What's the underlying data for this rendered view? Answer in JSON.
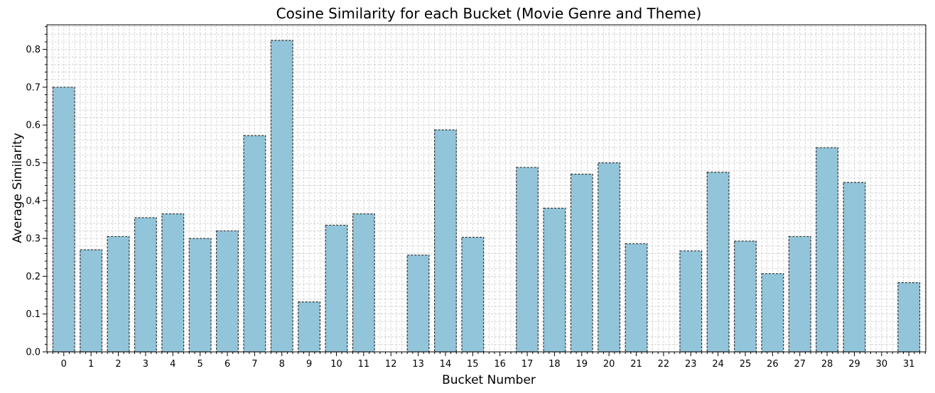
{
  "chart_data": {
    "type": "bar",
    "title": "Cosine Similarity for each Bucket (Movie Genre and Theme)",
    "xlabel": "Bucket Number",
    "ylabel": "Average Similarity",
    "categories": [
      "0",
      "1",
      "2",
      "3",
      "4",
      "5",
      "6",
      "7",
      "8",
      "9",
      "10",
      "11",
      "12",
      "13",
      "14",
      "15",
      "16",
      "17",
      "18",
      "19",
      "20",
      "21",
      "22",
      "23",
      "24",
      "25",
      "26",
      "27",
      "28",
      "29",
      "30",
      "31"
    ],
    "values": [
      0.7,
      0.27,
      0.305,
      0.355,
      0.365,
      0.3,
      0.32,
      0.572,
      0.824,
      0.132,
      0.335,
      0.365,
      0,
      0.256,
      0.587,
      0.303,
      0,
      0.488,
      0.38,
      0.47,
      0.5,
      0.286,
      0,
      0.267,
      0.475,
      0.293,
      0.207,
      0.305,
      0.54,
      0.448,
      0,
      0.183
    ],
    "ylim": [
      0,
      0.865
    ],
    "yticks": [
      "0.0",
      "0.1",
      "0.2",
      "0.3",
      "0.4",
      "0.5",
      "0.6",
      "0.7",
      "0.8"
    ],
    "grid": true,
    "minor_grid": true,
    "bar_color": "#92c5d9",
    "bar_edge_color": "#333333",
    "grid_color": "#cccccc"
  }
}
